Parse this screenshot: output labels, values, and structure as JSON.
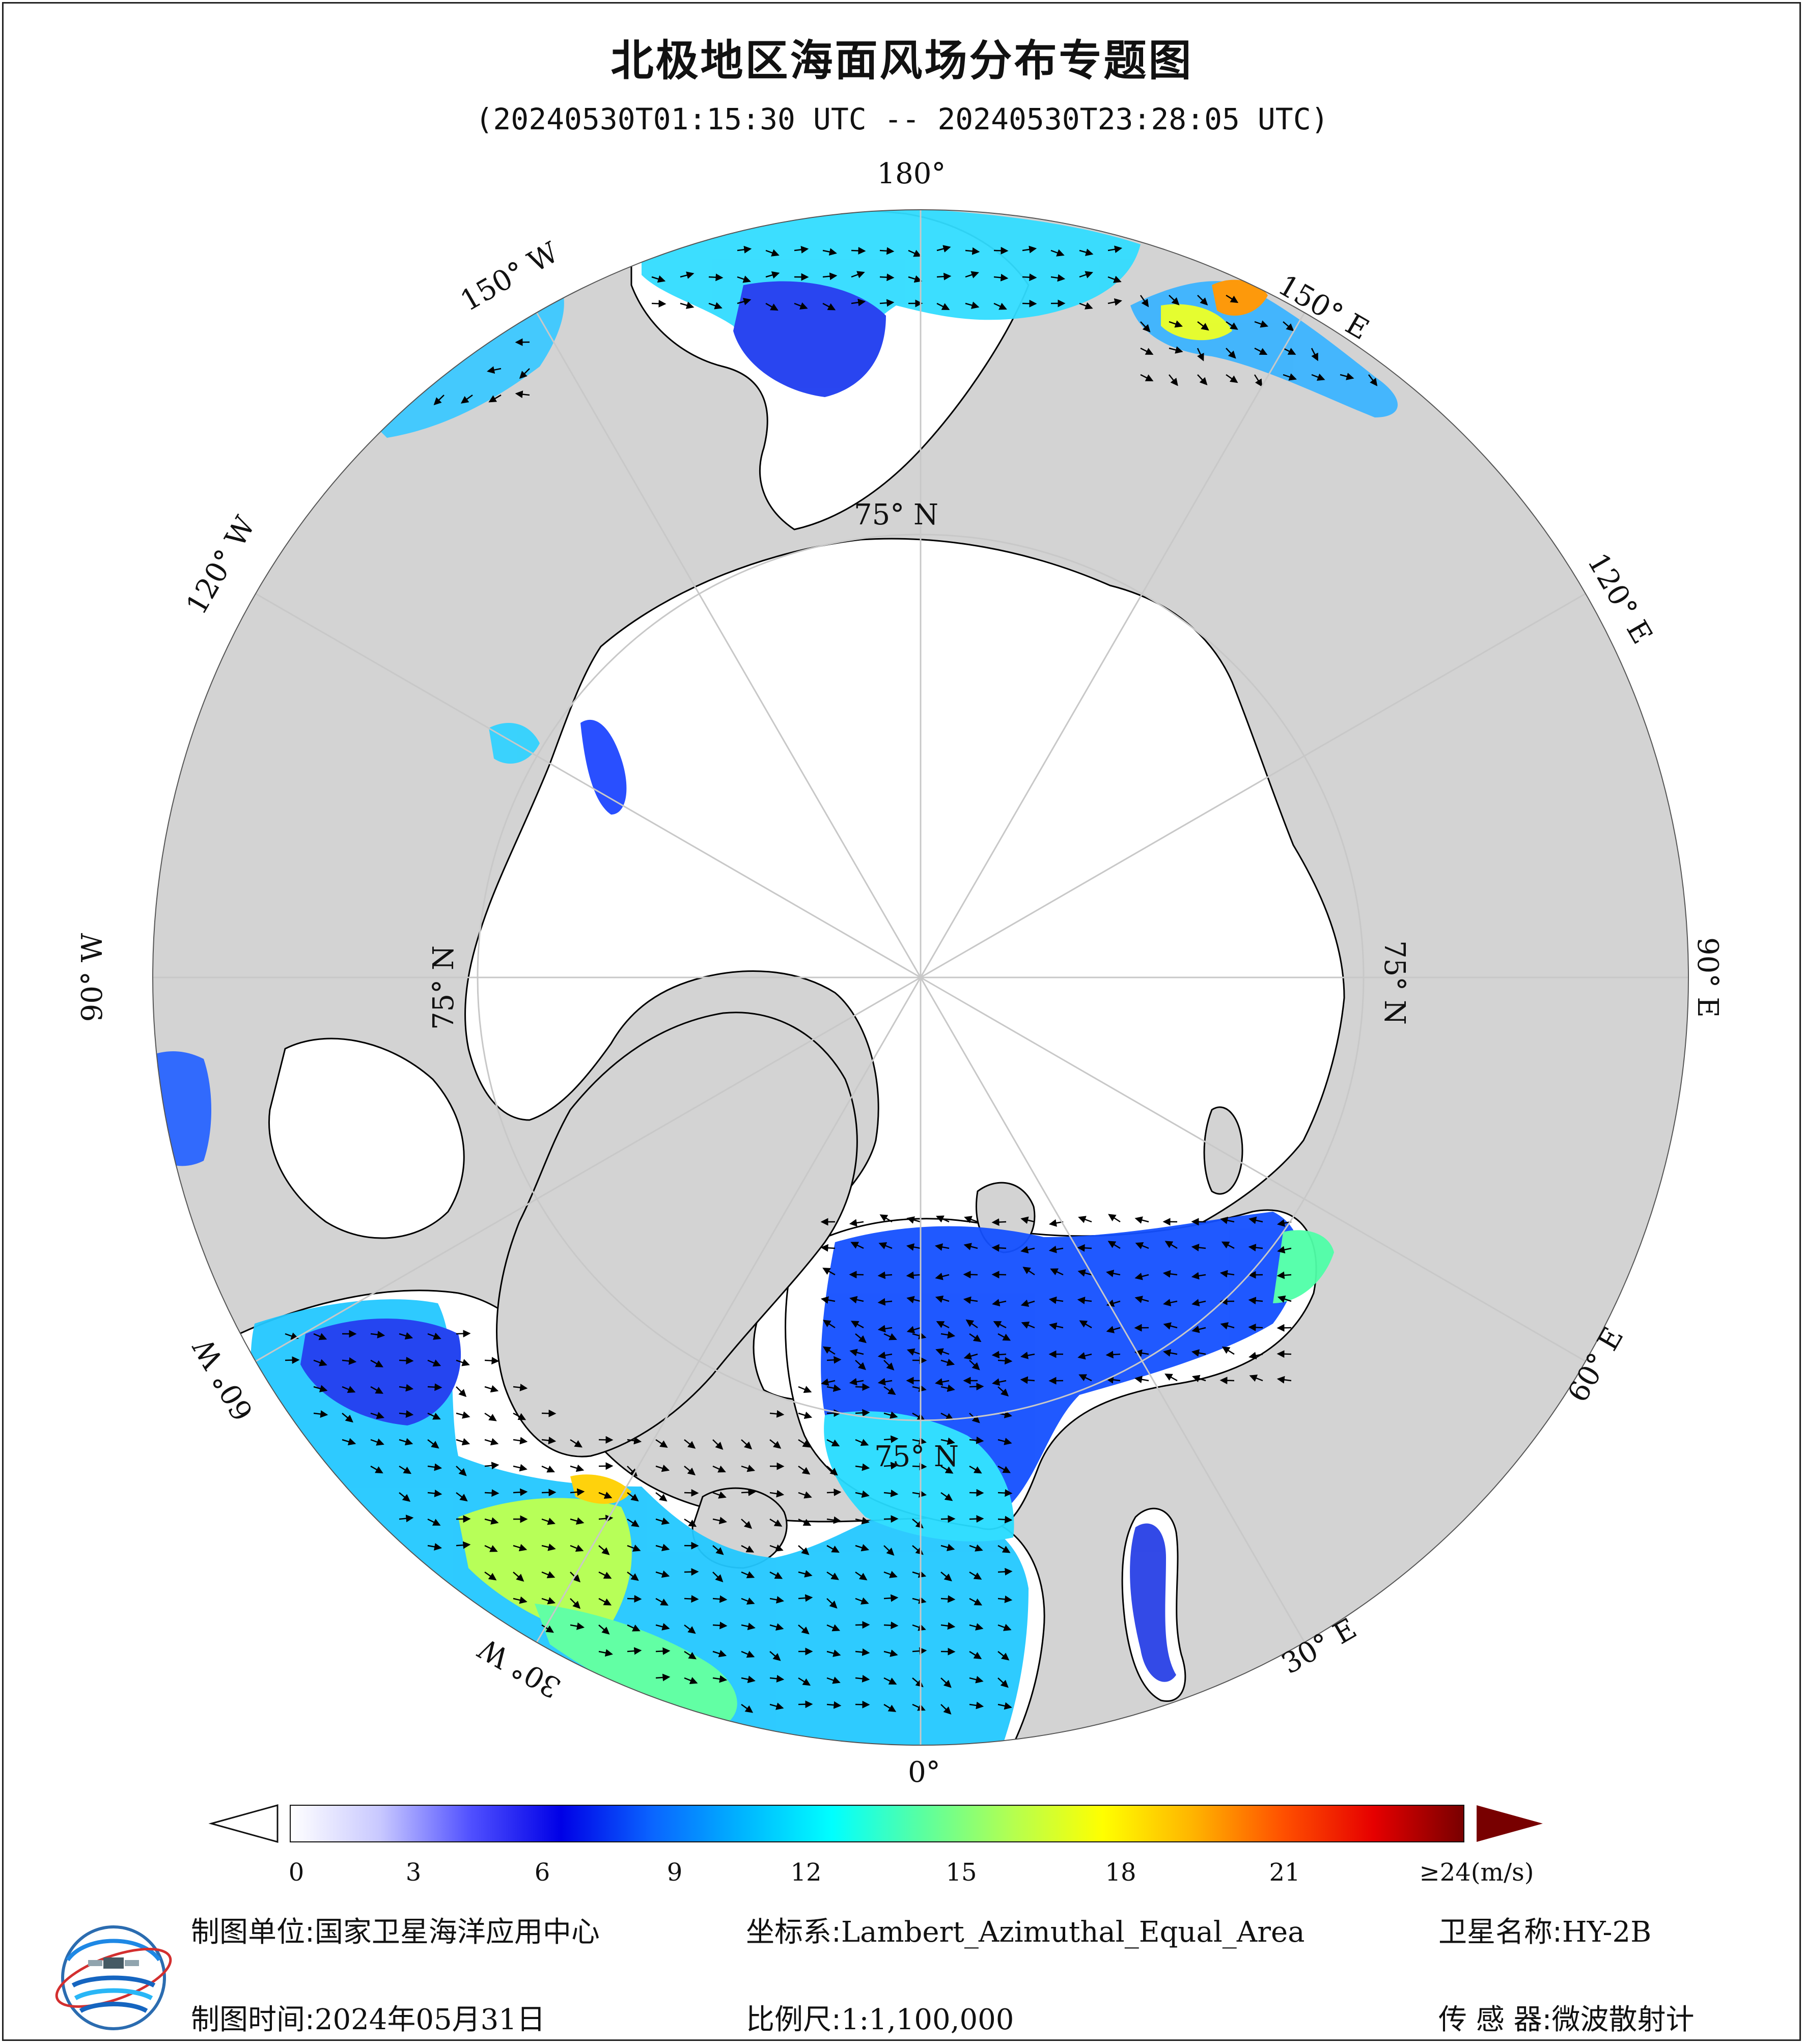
{
  "title": "北极地区海面风场分布专题图",
  "subtitle": "(20240530T01:15:30 UTC -- 20240530T23:28:05 UTC)",
  "map": {
    "projection_note": "north polar view",
    "colors": {
      "ocean_no_data": "#ffffff",
      "land": "#d3d3d3",
      "coastline": "#000000",
      "gridline": "#c8c8c8"
    },
    "longitude_labels": {
      "lon_180": "180°",
      "lon_150e": "150° E",
      "lon_120e": "120° E",
      "lon_90e": "90° E",
      "lon_60e": "60° E",
      "lon_30e": "30° E",
      "lon_0": "0°",
      "lon_30w": "30° W",
      "lon_60w": "60° W",
      "lon_90w": "90° W",
      "lon_120w": "120° W",
      "lon_150w": "150° W"
    },
    "latitude_labels": {
      "lat_top": "75° N",
      "lat_right": "75° N",
      "lat_bottom": "75° N",
      "lat_left": "75° N"
    }
  },
  "colorbar": {
    "unit_label": "≥24(m/s)",
    "ticks": [
      "0",
      "3",
      "6",
      "9",
      "12",
      "15",
      "18",
      "21"
    ],
    "tick_values": [
      0,
      3,
      6,
      9,
      12,
      15,
      18,
      21
    ],
    "max_value": 24,
    "stops": [
      "#ffffff",
      "#c8c8ff",
      "#5050ff",
      "#0000e6",
      "#0a64ff",
      "#00b4ff",
      "#00ffff",
      "#5affa0",
      "#b4ff50",
      "#ffff00",
      "#ffb400",
      "#ff5000",
      "#e60000",
      "#780000"
    ]
  },
  "footer": {
    "unit_key": "制图单位:",
    "unit_value": "国家卫星海洋应用中心",
    "coord_key": "坐标系:",
    "coord_value": "Lambert_Azimuthal_Equal_Area",
    "satellite_key": "卫星名称:",
    "satellite_value": "HY-2B",
    "date_key": "制图时间:",
    "date_value": "2024年05月31日",
    "scale_key": "比例尺:",
    "scale_value": "1:1,100,000",
    "sensor_key": "传 感 器:",
    "sensor_value": "微波散射计"
  }
}
